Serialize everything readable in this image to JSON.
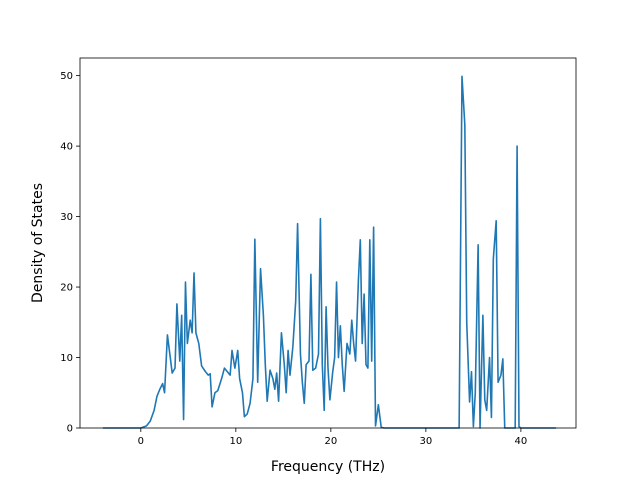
{
  "chart_data": {
    "type": "line",
    "title": "",
    "xlabel": "Frequency (THz)",
    "ylabel": "Density of States",
    "xlim": [
      -6.4,
      45.8
    ],
    "ylim": [
      0,
      52.5
    ],
    "xticks": [
      0,
      10,
      20,
      30,
      40
    ],
    "yticks": [
      0,
      10,
      20,
      30,
      40,
      50
    ],
    "grid": false,
    "legend": "none",
    "series": [
      {
        "color": "#1f77b4",
        "points": [
          [
            -4.0,
            0
          ],
          [
            -2.0,
            0
          ],
          [
            0.0,
            0
          ],
          [
            0.6,
            0.3
          ],
          [
            1.0,
            1.0
          ],
          [
            1.4,
            2.5
          ],
          [
            1.7,
            4.5
          ],
          [
            2.0,
            5.5
          ],
          [
            2.3,
            6.3
          ],
          [
            2.5,
            5.0
          ],
          [
            2.8,
            13.2
          ],
          [
            3.1,
            10.0
          ],
          [
            3.3,
            7.8
          ],
          [
            3.6,
            8.5
          ],
          [
            3.8,
            17.6
          ],
          [
            4.1,
            9.5
          ],
          [
            4.3,
            16.0
          ],
          [
            4.5,
            1.2
          ],
          [
            4.7,
            20.7
          ],
          [
            4.9,
            12.0
          ],
          [
            5.2,
            15.3
          ],
          [
            5.4,
            13.5
          ],
          [
            5.6,
            22.0
          ],
          [
            5.8,
            13.5
          ],
          [
            6.1,
            12.0
          ],
          [
            6.4,
            8.8
          ],
          [
            6.8,
            8.0
          ],
          [
            7.1,
            7.5
          ],
          [
            7.3,
            7.7
          ],
          [
            7.5,
            3.0
          ],
          [
            7.8,
            5.0
          ],
          [
            8.1,
            5.3
          ],
          [
            8.5,
            7.0
          ],
          [
            8.8,
            8.5
          ],
          [
            9.1,
            8.0
          ],
          [
            9.4,
            7.5
          ],
          [
            9.6,
            11.0
          ],
          [
            9.9,
            8.5
          ],
          [
            10.2,
            11.0
          ],
          [
            10.4,
            7.0
          ],
          [
            10.7,
            5.0
          ],
          [
            10.9,
            1.6
          ],
          [
            11.2,
            2.0
          ],
          [
            11.5,
            3.5
          ],
          [
            11.8,
            7.0
          ],
          [
            12.0,
            26.8
          ],
          [
            12.3,
            6.5
          ],
          [
            12.6,
            22.6
          ],
          [
            12.9,
            16.0
          ],
          [
            13.1,
            9.0
          ],
          [
            13.3,
            3.8
          ],
          [
            13.6,
            8.2
          ],
          [
            13.9,
            7.0
          ],
          [
            14.1,
            5.5
          ],
          [
            14.3,
            7.8
          ],
          [
            14.5,
            3.8
          ],
          [
            14.8,
            13.5
          ],
          [
            15.1,
            9.0
          ],
          [
            15.3,
            5.0
          ],
          [
            15.5,
            11.0
          ],
          [
            15.7,
            7.5
          ],
          [
            16.0,
            11.5
          ],
          [
            16.3,
            18.0
          ],
          [
            16.5,
            29.0
          ],
          [
            16.8,
            10.5
          ],
          [
            17.0,
            6.5
          ],
          [
            17.2,
            3.5
          ],
          [
            17.4,
            9.0
          ],
          [
            17.7,
            9.5
          ],
          [
            17.9,
            21.8
          ],
          [
            18.1,
            8.2
          ],
          [
            18.4,
            8.5
          ],
          [
            18.7,
            10.5
          ],
          [
            18.9,
            29.7
          ],
          [
            19.1,
            9.0
          ],
          [
            19.3,
            2.5
          ],
          [
            19.5,
            17.2
          ],
          [
            19.7,
            8.5
          ],
          [
            19.9,
            4.0
          ],
          [
            20.2,
            8.0
          ],
          [
            20.4,
            10.0
          ],
          [
            20.6,
            20.7
          ],
          [
            20.8,
            10.0
          ],
          [
            21.0,
            14.5
          ],
          [
            21.2,
            9.0
          ],
          [
            21.4,
            5.2
          ],
          [
            21.7,
            12.0
          ],
          [
            22.0,
            10.5
          ],
          [
            22.2,
            15.3
          ],
          [
            22.4,
            12.0
          ],
          [
            22.6,
            9.5
          ],
          [
            22.9,
            21.0
          ],
          [
            23.1,
            26.7
          ],
          [
            23.3,
            12.0
          ],
          [
            23.5,
            19.0
          ],
          [
            23.7,
            9.0
          ],
          [
            23.9,
            8.5
          ],
          [
            24.1,
            26.7
          ],
          [
            24.3,
            9.5
          ],
          [
            24.5,
            28.5
          ],
          [
            24.7,
            0.3
          ],
          [
            25.0,
            3.3
          ],
          [
            25.3,
            0.1
          ],
          [
            25.6,
            0
          ],
          [
            27.0,
            0
          ],
          [
            29.0,
            0
          ],
          [
            31.0,
            0
          ],
          [
            33.0,
            0
          ],
          [
            33.5,
            0
          ],
          [
            33.8,
            49.9
          ],
          [
            34.1,
            43.0
          ],
          [
            34.3,
            15.0
          ],
          [
            34.6,
            3.7
          ],
          [
            34.8,
            8.0
          ],
          [
            35.0,
            0.2
          ],
          [
            35.2,
            5.0
          ],
          [
            35.5,
            26.0
          ],
          [
            35.7,
            0
          ],
          [
            36.0,
            16.0
          ],
          [
            36.2,
            4.0
          ],
          [
            36.4,
            2.5
          ],
          [
            36.7,
            10.0
          ],
          [
            36.9,
            1.5
          ],
          [
            37.1,
            24.0
          ],
          [
            37.4,
            29.4
          ],
          [
            37.6,
            6.5
          ],
          [
            37.9,
            7.5
          ],
          [
            38.1,
            9.8
          ],
          [
            38.3,
            0
          ],
          [
            38.6,
            0
          ],
          [
            39.0,
            0
          ],
          [
            39.4,
            0
          ],
          [
            39.6,
            40.0
          ],
          [
            39.8,
            0.2
          ],
          [
            40.0,
            0
          ],
          [
            41.0,
            0
          ],
          [
            42.0,
            0
          ],
          [
            43.7,
            0
          ]
        ]
      }
    ]
  }
}
